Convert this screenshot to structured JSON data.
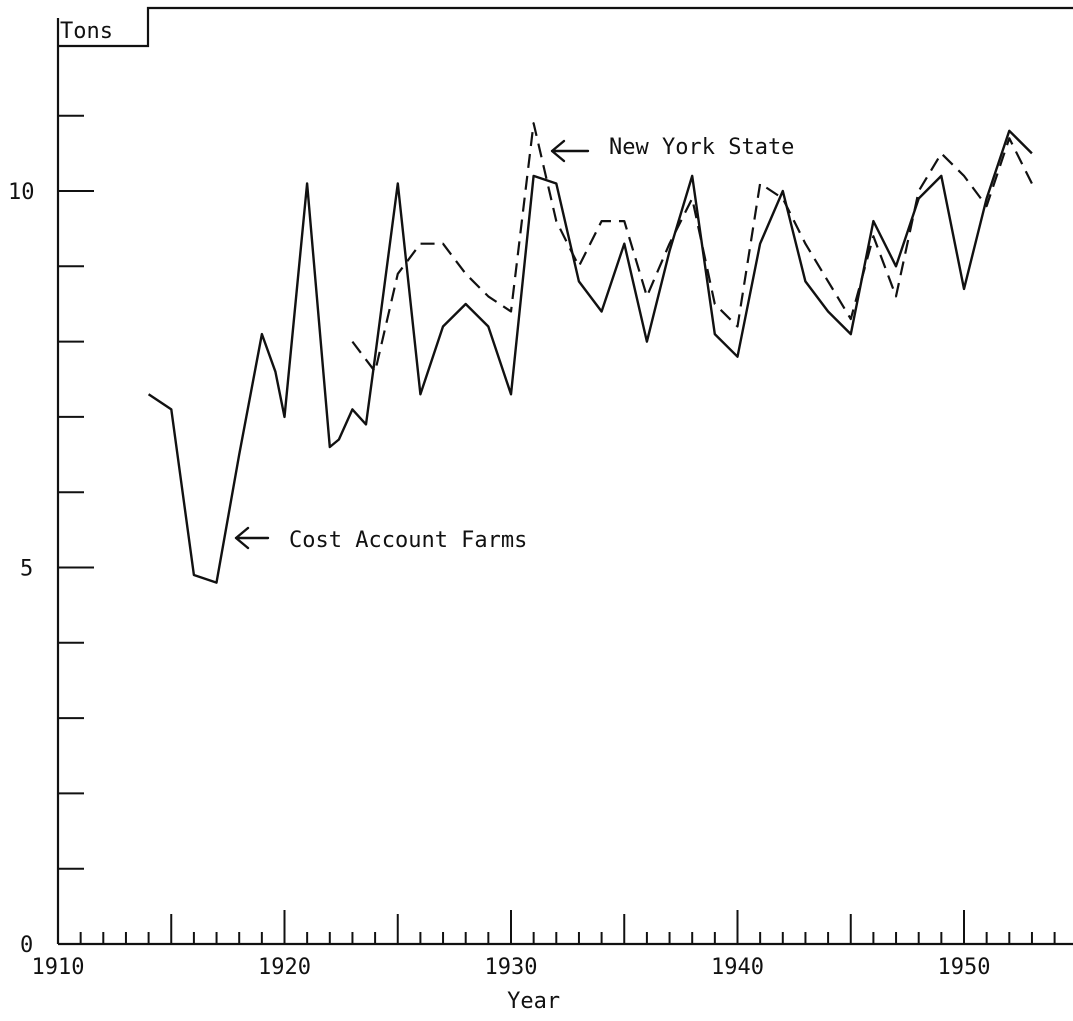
{
  "chart_data": {
    "type": "line",
    "title": "",
    "xlabel": "Year",
    "ylabel": "Tons",
    "xlim": [
      1910,
      1955
    ],
    "ylim": [
      0,
      11.5
    ],
    "x_ticks_labeled": [
      "1910",
      "1920",
      "1930",
      "1940",
      "1950"
    ],
    "y_ticks_labeled": [
      "0",
      "5",
      "10"
    ],
    "grid": false,
    "series": [
      {
        "name": "Cost Account Farms",
        "style": "solid",
        "x": [
          1914,
          1915,
          1916,
          1917,
          1918,
          1919,
          1919.6,
          1920,
          1921,
          1922,
          1922.4,
          1923,
          1923.6,
          1924,
          1925,
          1926,
          1927,
          1928,
          1929,
          1930,
          1931,
          1932,
          1933,
          1934,
          1935,
          1936,
          1937,
          1938,
          1939,
          1940,
          1941,
          1942,
          1943,
          1944,
          1945,
          1946,
          1947,
          1948,
          1949,
          1950,
          1951,
          1952,
          1953
        ],
        "y": [
          7.3,
          7.1,
          4.9,
          4.8,
          6.5,
          8.1,
          7.6,
          7.0,
          10.1,
          6.6,
          6.7,
          7.1,
          6.9,
          7.8,
          10.1,
          7.3,
          8.2,
          8.5,
          8.2,
          7.3,
          10.2,
          10.1,
          8.8,
          8.4,
          9.3,
          8.0,
          9.2,
          10.2,
          8.1,
          7.8,
          9.3,
          10.0,
          8.8,
          8.4,
          8.1,
          9.6,
          9.0,
          9.9,
          10.2,
          8.7,
          9.9,
          10.8,
          10.5
        ]
      },
      {
        "name": "New York State",
        "style": "dashed",
        "x": [
          1923,
          1924,
          1925,
          1926,
          1927,
          1928,
          1929,
          1930,
          1931,
          1932,
          1933,
          1934,
          1935,
          1936,
          1937,
          1938,
          1939,
          1940,
          1941,
          1942,
          1943,
          1944,
          1945,
          1946,
          1947,
          1948,
          1949,
          1950,
          1951,
          1952,
          1953
        ],
        "y": [
          8.0,
          7.6,
          8.9,
          9.3,
          9.3,
          8.9,
          8.6,
          8.4,
          10.9,
          9.6,
          9.0,
          9.6,
          9.6,
          8.6,
          9.3,
          9.9,
          8.5,
          8.2,
          10.1,
          9.9,
          9.3,
          8.8,
          8.3,
          9.4,
          8.6,
          10.0,
          10.5,
          10.2,
          9.8,
          10.7,
          10.1
        ]
      }
    ],
    "annotations": [
      {
        "text": "Cost Account Farms",
        "points_to": "Cost Account Farms"
      },
      {
        "text": "New York State",
        "points_to": "New York State"
      }
    ]
  }
}
